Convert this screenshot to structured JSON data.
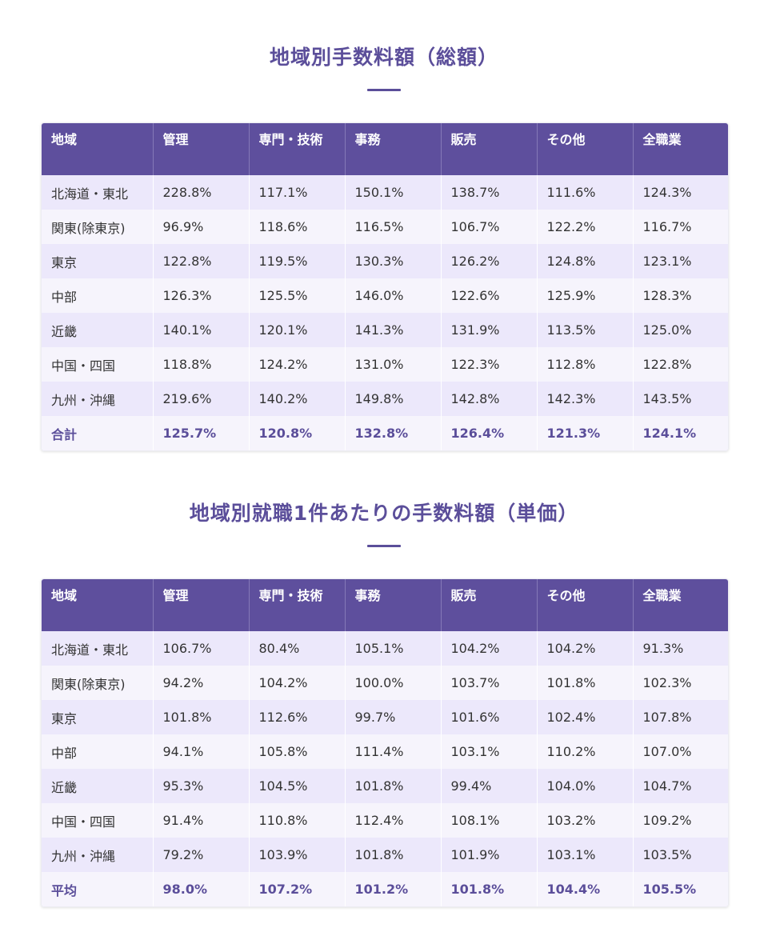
{
  "table1": {
    "title": "地域別手数料額（総額）",
    "headers": [
      "地域",
      "管理",
      "専門・技術",
      "事務",
      "販売",
      "その他",
      "全職業"
    ],
    "rows": [
      [
        "北海道・東北",
        "228.8%",
        "117.1%",
        "150.1%",
        "138.7%",
        "111.6%",
        "124.3%"
      ],
      [
        "関東(除東京)",
        "96.9%",
        "118.6%",
        "116.5%",
        "106.7%",
        "122.2%",
        "116.7%"
      ],
      [
        "東京",
        "122.8%",
        "119.5%",
        "130.3%",
        "126.2%",
        "124.8%",
        "123.1%"
      ],
      [
        "中部",
        "126.3%",
        "125.5%",
        "146.0%",
        "122.6%",
        "125.9%",
        "128.3%"
      ],
      [
        "近畿",
        "140.1%",
        "120.1%",
        "141.3%",
        "131.9%",
        "113.5%",
        "125.0%"
      ],
      [
        "中国・四国",
        "118.8%",
        "124.2%",
        "131.0%",
        "122.3%",
        "112.8%",
        "122.8%"
      ],
      [
        "九州・沖縄",
        "219.6%",
        "140.2%",
        "149.8%",
        "142.8%",
        "142.3%",
        "143.5%"
      ]
    ],
    "total": [
      "合計",
      "125.7%",
      "120.8%",
      "132.8%",
      "126.4%",
      "121.3%",
      "124.1%"
    ]
  },
  "table2": {
    "title": "地域別就職1件あたりの手数料額（単価）",
    "headers": [
      "地域",
      "管理",
      "専門・技術",
      "事務",
      "販売",
      "その他",
      "全職業"
    ],
    "rows": [
      [
        "北海道・東北",
        "106.7%",
        "80.4%",
        "105.1%",
        "104.2%",
        "104.2%",
        "91.3%"
      ],
      [
        "関東(除東京)",
        "94.2%",
        "104.2%",
        "100.0%",
        "103.7%",
        "101.8%",
        "102.3%"
      ],
      [
        "東京",
        "101.8%",
        "112.6%",
        "99.7%",
        "101.6%",
        "102.4%",
        "107.8%"
      ],
      [
        "中部",
        "94.1%",
        "105.8%",
        "111.4%",
        "103.1%",
        "110.2%",
        "107.0%"
      ],
      [
        "近畿",
        "95.3%",
        "104.5%",
        "101.8%",
        "99.4%",
        "104.0%",
        "104.7%"
      ],
      [
        "中国・四国",
        "91.4%",
        "110.8%",
        "112.4%",
        "108.1%",
        "103.2%",
        "109.2%"
      ],
      [
        "九州・沖縄",
        "79.2%",
        "103.9%",
        "101.8%",
        "101.9%",
        "103.1%",
        "103.5%"
      ]
    ],
    "total": [
      "平均",
      "98.0%",
      "107.2%",
      "101.2%",
      "101.8%",
      "104.4%",
      "105.5%"
    ]
  }
}
